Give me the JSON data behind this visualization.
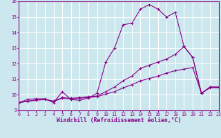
{
  "xlabel": "Windchill (Refroidissement éolien,°C)",
  "background_color": "#cce8ee",
  "grid_color": "#ffffff",
  "line_color": "#880088",
  "xlim": [
    0,
    23
  ],
  "ylim": [
    9,
    16
  ],
  "xticks": [
    0,
    1,
    2,
    3,
    4,
    5,
    6,
    7,
    8,
    9,
    10,
    11,
    12,
    13,
    14,
    15,
    16,
    17,
    18,
    19,
    20,
    21,
    22,
    23
  ],
  "yticks": [
    9,
    10,
    11,
    12,
    13,
    14,
    15,
    16
  ],
  "curve1_y": [
    9.5,
    9.7,
    9.75,
    9.75,
    9.5,
    10.2,
    9.7,
    9.65,
    9.8,
    10.1,
    12.1,
    13.0,
    14.5,
    14.6,
    15.5,
    15.8,
    15.5,
    15.0,
    15.3,
    13.1,
    12.4,
    10.1,
    10.5,
    10.5
  ],
  "curve2_y": [
    9.5,
    9.6,
    9.68,
    9.72,
    9.6,
    9.82,
    9.78,
    9.82,
    9.88,
    9.93,
    10.2,
    10.5,
    10.9,
    11.2,
    11.7,
    11.9,
    12.1,
    12.3,
    12.6,
    13.1,
    12.4,
    10.1,
    10.5,
    10.5
  ],
  "curve3_y": [
    9.5,
    9.58,
    9.65,
    9.7,
    9.58,
    9.78,
    9.73,
    9.78,
    9.83,
    9.88,
    10.05,
    10.2,
    10.45,
    10.65,
    10.9,
    11.05,
    11.2,
    11.4,
    11.55,
    11.65,
    11.75,
    10.1,
    10.45,
    10.45
  ],
  "tick_fontsize": 4.8,
  "xlabel_fontsize": 5.8
}
